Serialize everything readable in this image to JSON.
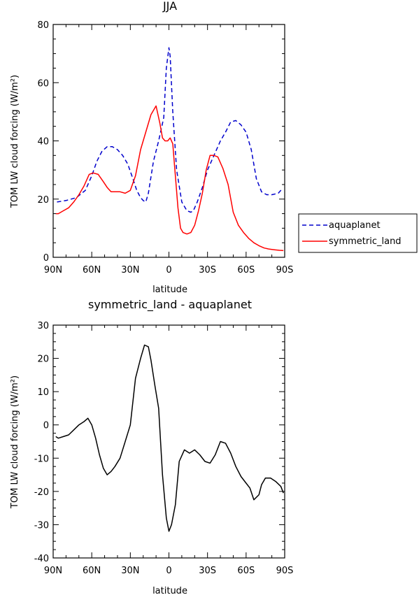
{
  "chart_data": [
    {
      "type": "line",
      "title": "JJA",
      "xlabel": "latitude",
      "ylabel": "TOM LW cloud forcing (W/m²)",
      "xlim": [
        -90,
        90
      ],
      "ylim": [
        0,
        80
      ],
      "xticks": [
        {
          "value": -90,
          "label": "90N"
        },
        {
          "value": -60,
          "label": "60N"
        },
        {
          "value": -30,
          "label": "30N"
        },
        {
          "value": 0,
          "label": "0"
        },
        {
          "value": 30,
          "label": "30S"
        },
        {
          "value": 60,
          "label": "60S"
        },
        {
          "value": 90,
          "label": "90S"
        }
      ],
      "yticks": [
        0,
        20,
        40,
        60,
        80
      ],
      "legend": "right",
      "series": [
        {
          "name": "aquaplanet",
          "color": "#0000cc",
          "dash": "dashed",
          "x": [
            -87,
            -80,
            -72,
            -65,
            -60,
            -56,
            -52,
            -48,
            -44,
            -40,
            -36,
            -32,
            -28,
            -25,
            -22,
            -20,
            -18,
            -16,
            -12,
            -8,
            -4,
            -2,
            0,
            1,
            3,
            6,
            10,
            14,
            17,
            19,
            22,
            26,
            30,
            35,
            40,
            44,
            48,
            52,
            56,
            60,
            64,
            68,
            72,
            76,
            80,
            85,
            88
          ],
          "y": [
            19,
            19.5,
            20.5,
            23,
            28,
            33,
            36.5,
            38,
            38,
            37,
            35,
            32,
            27,
            23,
            20.5,
            19.5,
            19,
            22,
            33,
            40,
            48,
            65,
            72,
            69,
            50,
            30,
            19,
            16,
            15.5,
            16,
            19,
            24,
            30,
            35,
            40,
            43,
            46.5,
            47,
            45.5,
            43,
            37,
            27,
            22.5,
            21.5,
            21.5,
            22,
            23.5
          ]
        },
        {
          "name": "symmetric_land",
          "color": "#ff0000",
          "dash": "solid",
          "x": [
            -88,
            -86,
            -82,
            -78,
            -74,
            -70,
            -66,
            -62,
            -59,
            -55,
            -51,
            -48,
            -45,
            -42,
            -38,
            -34,
            -30,
            -26,
            -22,
            -18,
            -14,
            -10,
            -7,
            -5,
            -3,
            -1,
            1,
            3,
            5,
            7,
            9,
            11,
            14,
            17,
            20,
            23,
            26,
            29,
            32,
            35,
            38,
            42,
            46,
            50,
            54,
            58,
            62,
            66,
            70,
            74,
            78,
            82,
            86,
            89
          ],
          "y": [
            15,
            15,
            16,
            17,
            19,
            21.5,
            24.5,
            28.5,
            29,
            28.5,
            26,
            24,
            22.5,
            22.5,
            22.5,
            22,
            23,
            28,
            37,
            43,
            49,
            52,
            46,
            41,
            40,
            40,
            41,
            39,
            28,
            17,
            10,
            8.5,
            8,
            8.5,
            11,
            16,
            22,
            30,
            35,
            35,
            34.5,
            30.5,
            25,
            15.5,
            11,
            8.5,
            6.5,
            5,
            4,
            3.2,
            2.8,
            2.6,
            2.4,
            2.3
          ]
        }
      ]
    },
    {
      "type": "line",
      "title": "symmetric_land - aquaplanet",
      "xlabel": "latitude",
      "ylabel": "TOM LW cloud forcing (W/m²)",
      "xlim": [
        -90,
        90
      ],
      "ylim": [
        -40,
        30
      ],
      "xticks": [
        {
          "value": -90,
          "label": "90N"
        },
        {
          "value": -60,
          "label": "60N"
        },
        {
          "value": -30,
          "label": "30N"
        },
        {
          "value": 0,
          "label": "0"
        },
        {
          "value": 30,
          "label": "30S"
        },
        {
          "value": 60,
          "label": "60S"
        },
        {
          "value": 90,
          "label": "90S"
        }
      ],
      "yticks": [
        -40,
        -30,
        -20,
        -10,
        0,
        10,
        20,
        30
      ],
      "series": [
        {
          "color": "#000000",
          "dash": "solid",
          "x": [
            -88,
            -86,
            -82,
            -78,
            -74,
            -70,
            -66,
            -63,
            -60,
            -57,
            -54,
            -51,
            -48,
            -45,
            -42,
            -38,
            -34,
            -30,
            -28,
            -26,
            -22,
            -19,
            -16,
            -14,
            -11,
            -8,
            -5,
            -2,
            0,
            2,
            5,
            8,
            12,
            16,
            20,
            24,
            28,
            32,
            36,
            40,
            44,
            48,
            52,
            56,
            60,
            63,
            66,
            70,
            72,
            75,
            79,
            83,
            87,
            89
          ],
          "y": [
            -3.5,
            -4,
            -3.5,
            -3,
            -1.5,
            0,
            1,
            2,
            0,
            -4,
            -9,
            -13,
            -15,
            -14,
            -12.5,
            -10,
            -5,
            0,
            7,
            14,
            20,
            24,
            23.5,
            19.5,
            12,
            5,
            -15,
            -28,
            -32,
            -30,
            -24,
            -11,
            -7.5,
            -8.5,
            -7.5,
            -9,
            -11,
            -11.5,
            -9,
            -5,
            -5.5,
            -8.5,
            -12.5,
            -15.5,
            -17.5,
            -19,
            -22.5,
            -21,
            -18,
            -16,
            -16,
            -17,
            -18.5,
            -20.5
          ]
        }
      ]
    }
  ]
}
